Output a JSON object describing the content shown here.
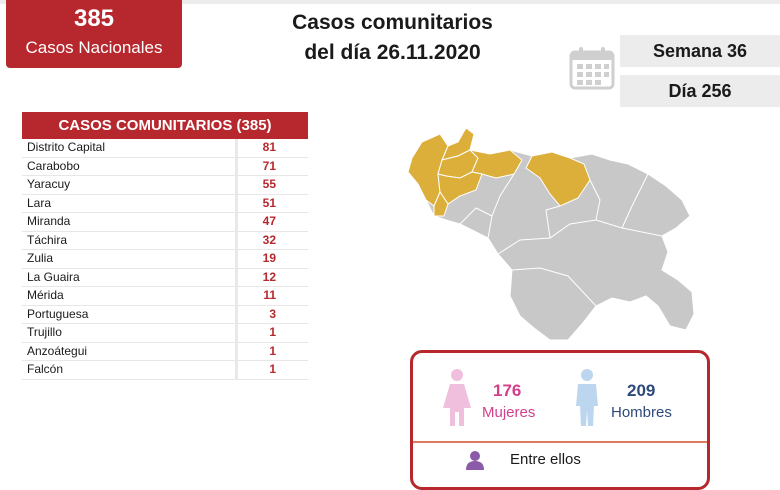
{
  "national": {
    "count": "385",
    "label": "Casos Nacionales"
  },
  "header": {
    "title_line1": "Casos comunitarios",
    "title_line2": "del día 26.11.2020"
  },
  "calendar_icon": "calendar-icon",
  "period": {
    "week": "Semana 36",
    "day": "Día 256"
  },
  "table": {
    "title": "CASOS COMUNITARIOS (385)",
    "rows": [
      {
        "state": "Distrito Capital",
        "cases": "81"
      },
      {
        "state": "Carabobo",
        "cases": "71"
      },
      {
        "state": "Yaracuy",
        "cases": "55"
      },
      {
        "state": "Lara",
        "cases": "51"
      },
      {
        "state": "Miranda",
        "cases": "47"
      },
      {
        "state": "Táchira",
        "cases": "32"
      },
      {
        "state": "Zulia",
        "cases": "19"
      },
      {
        "state": "La Guaira",
        "cases": "12"
      },
      {
        "state": "Mérida",
        "cases": "11"
      },
      {
        "state": "Portuguesa",
        "cases": "3"
      },
      {
        "state": "Trujillo",
        "cases": "1"
      },
      {
        "state": "Anzoátegui",
        "cases": "1"
      },
      {
        "state": "Falcón",
        "cases": "1"
      }
    ]
  },
  "map": {
    "highlight_color": "#dcae3a",
    "base_color": "#c8c8c8"
  },
  "gender": {
    "women_count": "176",
    "women_label": "Mujeres",
    "men_count": "209",
    "men_label": "Hombres",
    "among_label": "Entre ellos"
  },
  "colors": {
    "accent": "#b7282e",
    "women": "#d23f8c",
    "men": "#2e4a7a"
  }
}
